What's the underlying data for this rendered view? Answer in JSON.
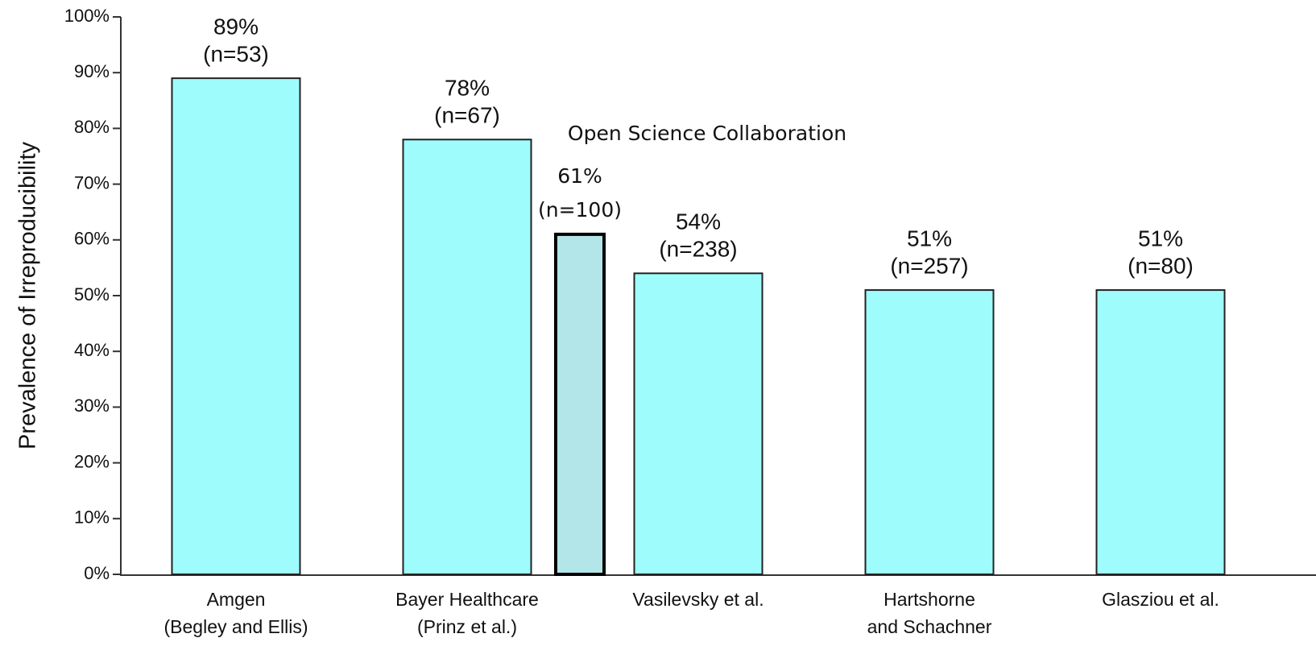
{
  "chart_data": {
    "type": "bar",
    "y_axis_label": "Prevalence of Irreproducibility",
    "categories": [
      [
        "Amgen",
        "(Begley and Ellis)"
      ],
      [
        "Bayer Healthcare",
        "(Prinz et al.)"
      ],
      [
        "Vasilevsky et al."
      ],
      [
        "Hartshorne",
        "and Schachner"
      ],
      [
        "Glasziou et al."
      ]
    ],
    "values": [
      89,
      78,
      54,
      51,
      51
    ],
    "value_labels": [
      "89%",
      "78%",
      "54%",
      "51%",
      "51%"
    ],
    "sample_labels": [
      "(n=53)",
      "(n=67)",
      "(n=238)",
      "(n=257)",
      "(n=80)"
    ],
    "color": "#9ffcfc",
    "highlight": {
      "name": "Open Science Collaboration",
      "value": 61,
      "value_label": "61%",
      "sample_label": "(n=100)",
      "color": "#b3e6e8"
    },
    "ylim": [
      0,
      100
    ],
    "yticks": [
      {
        "value": 0,
        "label": "0%"
      },
      {
        "value": 10,
        "label": "10%"
      },
      {
        "value": 20,
        "label": "20%"
      },
      {
        "value": 30,
        "label": "30%"
      },
      {
        "value": 40,
        "label": "40%"
      },
      {
        "value": 50,
        "label": "50%"
      },
      {
        "value": 60,
        "label": "60%"
      },
      {
        "value": 70,
        "label": "70%"
      },
      {
        "value": 80,
        "label": "80%"
      },
      {
        "value": 90,
        "label": "90%"
      },
      {
        "value": 100,
        "label": "100%"
      }
    ]
  }
}
